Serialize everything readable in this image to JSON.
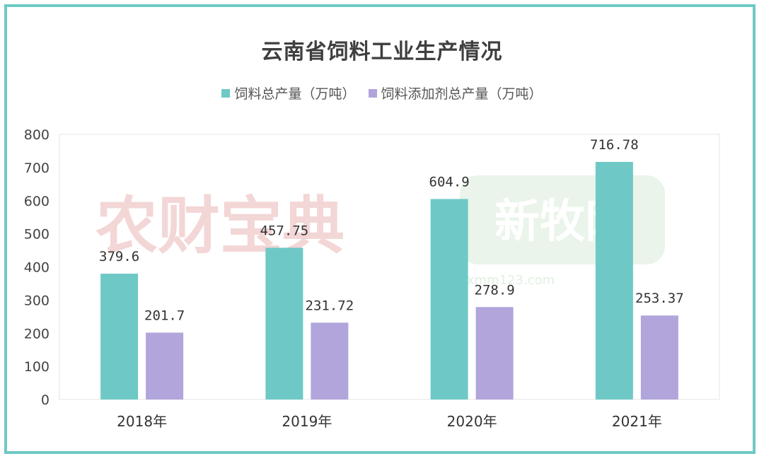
{
  "chart_data": {
    "type": "bar",
    "title": "云南省饲料工业生产情况",
    "categories": [
      "2018年",
      "2019年",
      "2020年",
      "2021年"
    ],
    "series": [
      {
        "name": "饲料总产量（万吨）",
        "values": [
          379.6,
          457.75,
          604.9,
          716.78
        ],
        "labels": [
          "379.6",
          "457.75",
          "604.9",
          "716.78"
        ],
        "color": "#6ec9c6"
      },
      {
        "name": "饲料添加剂总产量（万吨）",
        "values": [
          201.7,
          231.72,
          278.9,
          253.37
        ],
        "labels": [
          "201.7",
          "231.72",
          "278.9",
          "253.37"
        ],
        "color": "#b1a5dc"
      }
    ],
    "ylim": [
      0,
      800
    ],
    "yticks": [
      0,
      100,
      200,
      300,
      400,
      500,
      600,
      700,
      800
    ],
    "grid": false,
    "legend_position": "top"
  },
  "colors": {
    "border": "#6ec9c6",
    "watermark_text": "#f3d6d6",
    "watermark_badge": "#d8ebd8"
  },
  "watermark": {
    "text_left": "农财宝典",
    "text_right": "新牧网",
    "url": "xmm123.com"
  }
}
